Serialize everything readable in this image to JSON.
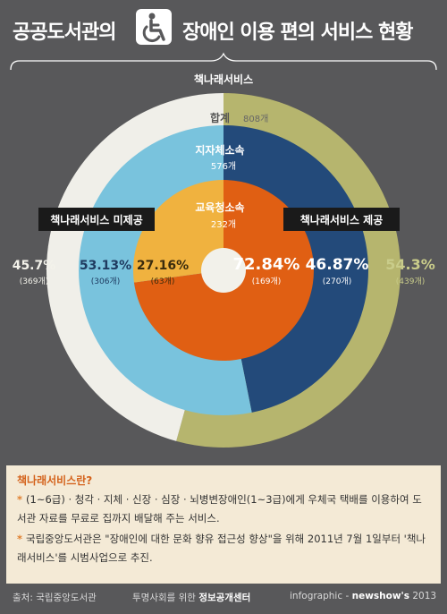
{
  "header": {
    "title_left": "공공도서관의",
    "title_right": "장애인 이용 편의 서비스 현황",
    "brace_label": "책나래서비스"
  },
  "colors": {
    "outer_left": "#f0efe9",
    "outer_right": "#b6b56e",
    "middle_left": "#79c3dd",
    "middle_right": "#234a7a",
    "inner_left": "#f0b23f",
    "inner_right": "#e05f13",
    "accent_right": "#c3c68c"
  },
  "chart_data": {
    "type": "pie",
    "title": "공공도서관의 장애인 이용 편의 서비스 현황",
    "categories": [
      "책나래서비스 미제공",
      "책나래서비스 제공"
    ],
    "series": [
      {
        "name": "합계",
        "total_label": "808개",
        "values": [
          45.7,
          54.3
        ],
        "percent_labels": [
          "45.7%",
          "54.3%"
        ],
        "count_labels": [
          "(369개)",
          "(439개)"
        ]
      },
      {
        "name": "지자체소속",
        "total_label": "576개",
        "values": [
          53.13,
          46.87
        ],
        "percent_labels": [
          "53.13%",
          "46.87%"
        ],
        "count_labels": [
          "(306개)",
          "(270개)"
        ]
      },
      {
        "name": "교육청소속",
        "total_label": "232개",
        "values": [
          27.16,
          72.84
        ],
        "percent_labels": [
          "27.16%",
          "72.84%"
        ],
        "count_labels": [
          "(63개)",
          "(169개)"
        ]
      }
    ]
  },
  "info": {
    "title": "책나래서비스란?",
    "bullet": "*",
    "items": [
      "(1~6급) · 청각 · 지체 · 신장 · 심장 · 뇌병변장애인(1~3급)에게 우체국 택배를 이용하여 도서관 자료를 무료로 집까지 배달해 주는 서비스.",
      "국립중앙도서관은 \"장애인에 대한 문화 향유 접근성 향상\"을 위해 2011년 7월 1일부터 '책나래서비스'를 시범사업으로 추진."
    ]
  },
  "footer": {
    "source": "출처: 국립중앙도서관",
    "center_prefix": "투명사회를 위한",
    "center_bold": "정보공개센터",
    "right_prefix": "infographic -",
    "right_bold": "newshow's",
    "right_year": "2013"
  }
}
